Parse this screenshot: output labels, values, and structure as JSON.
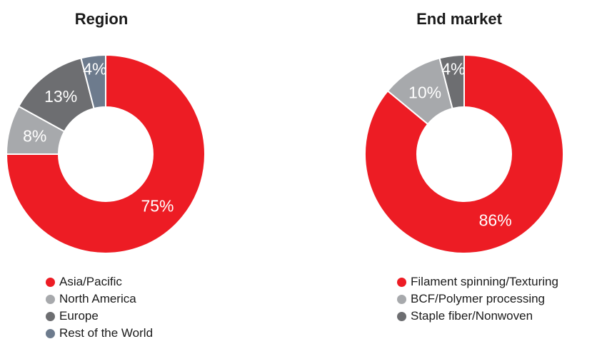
{
  "colors": {
    "red": "#ed1c24",
    "light_gray": "#a7a9ac",
    "dark_gray": "#6d6e71",
    "slate_blue": "#6d7b8d"
  },
  "chart_data": [
    {
      "type": "pie",
      "title": "Region",
      "categories": [
        "Asia/Pacific",
        "North America",
        "Europe",
        "Rest of the World"
      ],
      "values": [
        75,
        8,
        13,
        4
      ],
      "labels": [
        "75%",
        "8%",
        "13%",
        "4%"
      ],
      "colors": [
        "#ed1c24",
        "#a7a9ac",
        "#6d6e71",
        "#6d7b8d"
      ],
      "legend": "bottom"
    },
    {
      "type": "pie",
      "title": "End market",
      "categories": [
        "Filament spinning/Texturing",
        "BCF/Polymer processing",
        "Staple fiber/Nonwoven"
      ],
      "values": [
        86,
        10,
        4
      ],
      "labels": [
        "86%",
        "10%",
        "4%"
      ],
      "colors": [
        "#ed1c24",
        "#a7a9ac",
        "#6d6e71"
      ],
      "legend": "bottom"
    }
  ]
}
